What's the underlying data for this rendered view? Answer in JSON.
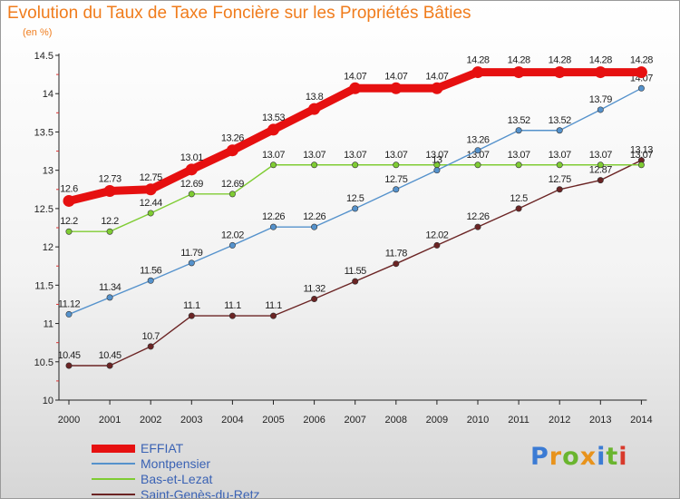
{
  "header": {
    "title": "Evolution du Taux de Taxe Foncière sur les Propriétés Bâties",
    "unit": "(en %)"
  },
  "brand": {
    "text": "Proxiti"
  },
  "chart_data": {
    "type": "line",
    "categories": [
      "2000",
      "2001",
      "2002",
      "2003",
      "2004",
      "2005",
      "2006",
      "2007",
      "2008",
      "2009",
      "2010",
      "2011",
      "2012",
      "2013",
      "2014"
    ],
    "y_ticks": [
      "10",
      "10.5",
      "11",
      "11.5",
      "12",
      "12.5",
      "13",
      "13.5",
      "14",
      "14.5"
    ],
    "ylim": [
      10,
      14.5
    ],
    "grid": false,
    "legend_position": "bottom-left",
    "series": [
      {
        "name": "EFFIAT",
        "color": "#e61010",
        "values": [
          12.6,
          12.73,
          12.75,
          13.01,
          13.26,
          13.53,
          13.8,
          14.07,
          14.07,
          14.07,
          14.28,
          14.28,
          14.28,
          14.28,
          14.28
        ],
        "labels": [
          "12.6",
          "12.73",
          "12.75",
          "13.01",
          "13.26",
          "13.53",
          "13.8",
          "14.07",
          "14.07",
          "14.07",
          "14.28",
          "14.28",
          "14.28",
          "14.28",
          "14.28"
        ]
      },
      {
        "name": "Montpensier",
        "color": "#5592cc",
        "values": [
          11.12,
          11.34,
          11.56,
          11.79,
          12.02,
          12.26,
          12.26,
          12.5,
          12.75,
          13,
          13.26,
          13.52,
          13.52,
          13.79,
          14.07
        ],
        "labels": [
          "11.12",
          "11.34",
          "11.56",
          "11.79",
          "12.02",
          "12.26",
          "12.26",
          "12.5",
          "12.75",
          "13",
          "13.26",
          "13.52",
          "13.52",
          "13.79",
          "14.07"
        ]
      },
      {
        "name": "Bas-et-Lezat",
        "color": "#7fcc33",
        "values": [
          12.2,
          12.2,
          12.44,
          12.69,
          12.69,
          13.07,
          13.07,
          13.07,
          13.07,
          13.07,
          13.07,
          13.07,
          13.07,
          13.07,
          13.07
        ],
        "labels": [
          "12.2",
          "12.2",
          "12.44",
          "12.69",
          "12.69",
          "13.07",
          "13.07",
          "13.07",
          "13.07",
          "13.07",
          "13.07",
          "13.07",
          "13.07",
          "13.07",
          "13.07"
        ]
      },
      {
        "name": "Saint-Genès-du-Retz",
        "color": "#6b2424",
        "values": [
          10.45,
          10.45,
          10.7,
          11.1,
          11.1,
          11.1,
          11.32,
          11.55,
          11.78,
          12.02,
          12.26,
          12.5,
          12.75,
          12.87,
          13.13
        ],
        "labels": [
          "10.45",
          "10.45",
          "10.7",
          "11.1",
          "11.1",
          "11.1",
          "11.32",
          "11.55",
          "11.78",
          "12.02",
          "12.26",
          "12.5",
          "12.75",
          "12.87",
          "13.13"
        ]
      }
    ]
  }
}
